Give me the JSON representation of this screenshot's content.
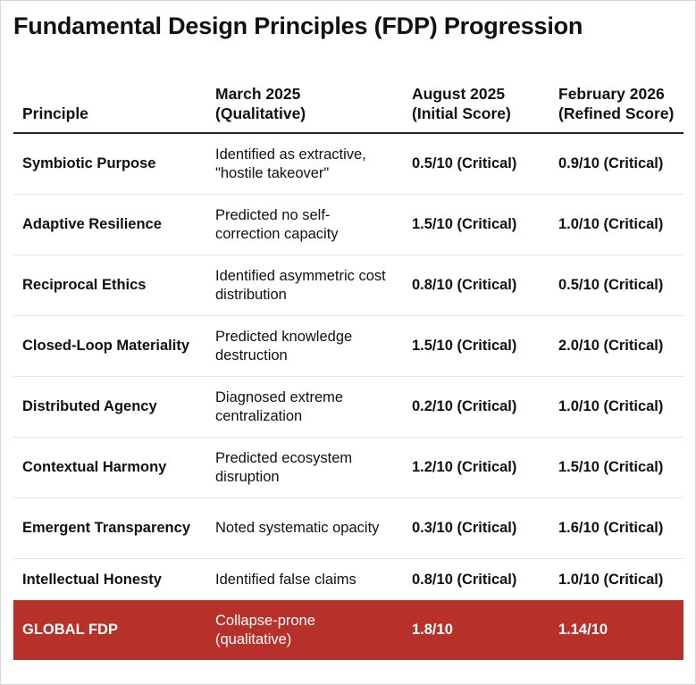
{
  "title": "Fundamental Design Principles (FDP) Progression",
  "headers": {
    "principle": "Principle",
    "march": "March 2025 (Qualitative)",
    "august": "August 2025 (Initial Score)",
    "february": "February 2026 (Refined Score)"
  },
  "rows": [
    {
      "principle": "Symbiotic Purpose",
      "march": "Identified as extractive, \"hostile takeover\"",
      "august": "0.5/10 (Critical)",
      "february": "0.9/10 (Critical)"
    },
    {
      "principle": "Adaptive Resilience",
      "march": "Predicted no self-correction capacity",
      "august": "1.5/10 (Critical)",
      "february": "1.0/10 (Critical)"
    },
    {
      "principle": "Reciprocal Ethics",
      "march": "Identified asymmetric cost distribution",
      "august": "0.8/10 (Critical)",
      "february": "0.5/10 (Critical)"
    },
    {
      "principle": "Closed-Loop Materiality",
      "march": "Predicted knowledge destruction",
      "august": "1.5/10 (Critical)",
      "february": "2.0/10 (Critical)"
    },
    {
      "principle": "Distributed Agency",
      "march": "Diagnosed extreme centralization",
      "august": "0.2/10 (Critical)",
      "february": "1.0/10 (Critical)"
    },
    {
      "principle": "Contextual Harmony",
      "march": "Predicted ecosystem disruption",
      "august": "1.2/10 (Critical)",
      "february": "1.5/10 (Critical)"
    },
    {
      "principle": "Emergent Transparency",
      "march": "Noted systematic opacity",
      "august": "0.3/10 (Critical)",
      "february": "1.6/10 (Critical)"
    },
    {
      "principle": "Intellectual Honesty",
      "march": "Identified false claims",
      "august": "0.8/10 (Critical)",
      "february": "1.0/10 (Critical)"
    }
  ],
  "global": {
    "principle": "GLOBAL FDP",
    "march": "Collapse-prone (qualitative)",
    "august": "1.8/10",
    "february": "1.14/10"
  },
  "colors": {
    "global_row_bg": "#b7302a",
    "global_row_text": "#ffffff"
  }
}
